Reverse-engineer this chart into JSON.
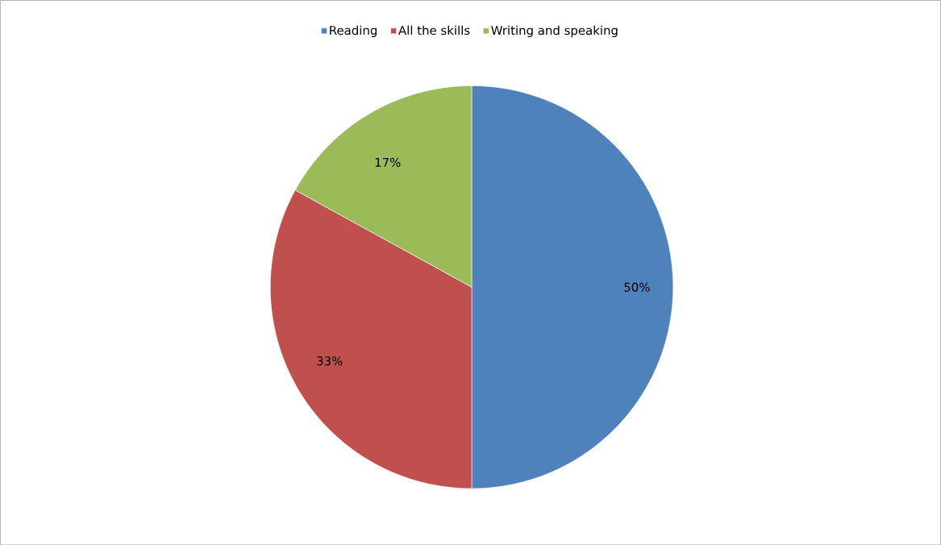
{
  "chart_data": {
    "type": "pie",
    "categories": [
      "Reading",
      "All the skills",
      "Writing and speaking"
    ],
    "values": [
      50,
      33,
      17
    ],
    "colors": [
      "#4f81bd",
      "#c0504d",
      "#9bbb59"
    ],
    "value_labels": [
      "50%",
      "33%",
      "17%"
    ],
    "legend": "top"
  }
}
